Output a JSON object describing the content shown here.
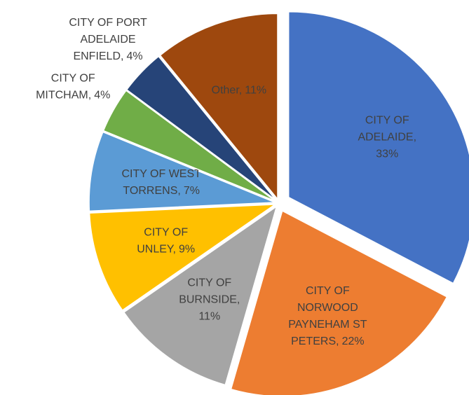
{
  "chart_data": {
    "type": "pie",
    "categories": [
      "CITY OF ADELAIDE",
      "CITY OF NORWOOD PAYNEHAM ST PETERS",
      "CITY OF BURNSIDE",
      "CITY OF UNLEY",
      "CITY OF WEST TORRENS",
      "CITY OF MITCHAM",
      "CITY OF PORT ADELAIDE ENFIELD",
      "Other"
    ],
    "values": [
      33,
      22,
      11,
      9,
      7,
      4,
      4,
      11
    ],
    "value_labels": [
      "33%",
      "22%",
      "11%",
      "9%",
      "7%",
      "4%",
      "4%",
      "11%"
    ],
    "colors": [
      "#4472c4",
      "#ed7d31",
      "#a5a5a5",
      "#ffc000",
      "#5b9bd5",
      "#70ad47",
      "#264478",
      "#9e480e"
    ]
  }
}
